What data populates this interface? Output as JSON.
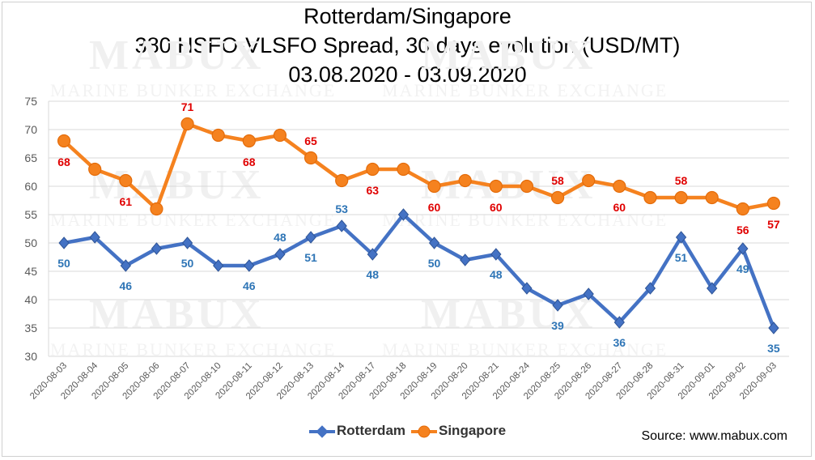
{
  "chart_data": {
    "type": "line",
    "title": [
      "Rotterdam/Singapore",
      "380 HSFO-VLSFO Spread, 30 days evolution (USD/MT)",
      "03.08.2020 - 03.09.2020"
    ],
    "categories": [
      "2020-08-03",
      "2020-08-04",
      "2020-08-05",
      "2020-08-06",
      "2020-08-07",
      "2020-08-10",
      "2020-08-11",
      "2020-08-12",
      "2020-08-13",
      "2020-08-14",
      "2020-08-17",
      "2020-08-18",
      "2020-08-19",
      "2020-08-20",
      "2020-08-21",
      "2020-08-24",
      "2020-08-25",
      "2020-08-26",
      "2020-08-27",
      "2020-08-28",
      "2020-08-31",
      "2020-09-01",
      "2020-09-02",
      "2020-09-03"
    ],
    "ylim": [
      30,
      75
    ],
    "yticks": [
      30,
      35,
      40,
      45,
      50,
      55,
      60,
      65,
      70,
      75
    ],
    "grid": true,
    "legend_position": "bottom",
    "series": [
      {
        "name": "Rotterdam",
        "color": "#4472c4",
        "marker": "diamond",
        "label_color": "#2e75b6",
        "values": [
          50,
          51,
          46,
          49,
          50,
          46,
          46,
          48,
          51,
          53,
          48,
          55,
          50,
          47,
          48,
          42,
          39,
          41,
          36,
          42,
          51,
          42,
          49,
          35
        ],
        "labeled": [
          0,
          2,
          4,
          6,
          7,
          8,
          9,
          10,
          12,
          14,
          16,
          18,
          20,
          22,
          23
        ]
      },
      {
        "name": "Singapore",
        "color": "#f5821f",
        "marker": "circle",
        "label_color": "#e00000",
        "values": [
          68,
          63,
          61,
          56,
          71,
          69,
          68,
          69,
          65,
          61,
          63,
          63,
          60,
          61,
          60,
          60,
          58,
          61,
          60,
          58,
          58,
          58,
          56,
          57
        ],
        "labeled": [
          0,
          2,
          4,
          6,
          8,
          10,
          12,
          14,
          16,
          18,
          20,
          22,
          23
        ]
      }
    ]
  },
  "source": "Source: www.mabux.com",
  "watermark": {
    "brand": "MABUX",
    "tagline": "MARINE BUNKER EXCHANGE"
  }
}
